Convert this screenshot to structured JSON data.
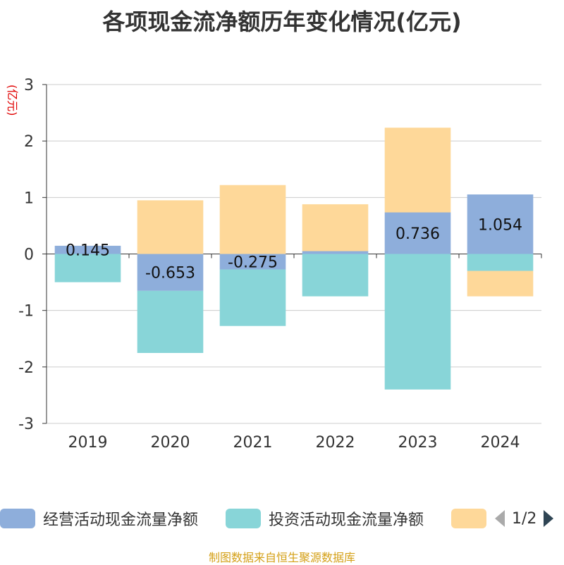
{
  "title": "各项现金流净额历年变化情况(亿元)",
  "source_note": "制图数据来自恒生聚源数据库",
  "legend_pager": "1/2",
  "colors": {
    "operating": "#8eaedb",
    "investing": "#88d5d8",
    "financing": "#fed899",
    "axis": "#333333",
    "grid": "#cccccc",
    "unit": "#e00000"
  },
  "chart_data": {
    "type": "bar",
    "stacked": true,
    "title": "各项现金流净额历年变化情况(亿元)",
    "ylabel": "(亿元)",
    "ylim": [
      -3,
      3
    ],
    "yticks": [
      3,
      2,
      1,
      0,
      -1,
      -2,
      -3
    ],
    "categories": [
      "2019",
      "2020",
      "2021",
      "2022",
      "2023",
      "2024"
    ],
    "grid": true,
    "legend_position": "bottom",
    "series": [
      {
        "name": "经营活动现金流量净额",
        "color_key": "operating",
        "values": [
          0.145,
          -0.653,
          -0.275,
          0.05,
          0.736,
          1.054
        ],
        "labels": [
          "0.145",
          "-0.653",
          "-0.275",
          "",
          "0.736",
          "1.054"
        ]
      },
      {
        "name": "投资活动现金流量净额",
        "color_key": "investing",
        "values": [
          -0.5,
          -1.1,
          -1.0,
          -0.75,
          -2.4,
          -0.3
        ],
        "labels": []
      },
      {
        "name": "",
        "color_key": "financing",
        "values": [
          0.0,
          0.95,
          1.22,
          0.83,
          1.5,
          -0.45
        ],
        "labels": []
      }
    ]
  }
}
